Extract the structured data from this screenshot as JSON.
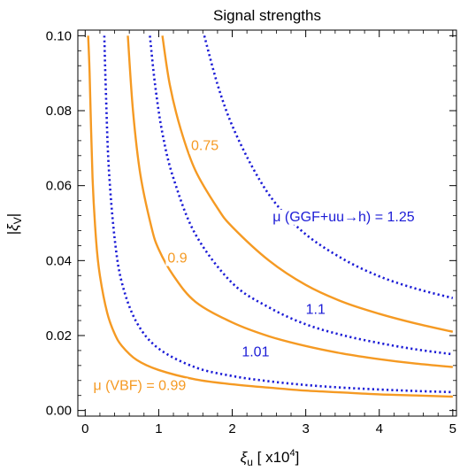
{
  "chart_data": {
    "type": "line",
    "title": "Signal strengths",
    "xlabel": "ξ_u [ x10^4]",
    "ylabel": "|ξ_V|",
    "xlim": [
      -0.1,
      5.05
    ],
    "ylim": [
      -0.0015,
      0.1015
    ],
    "xticks": [
      0,
      1,
      2,
      3,
      4,
      5
    ],
    "yticks": [
      0.0,
      0.02,
      0.04,
      0.06,
      0.08,
      0.1
    ],
    "ytick_labels": [
      "0.00",
      "0.02",
      "0.04",
      "0.06",
      "0.08",
      "0.10"
    ],
    "grid": false,
    "colors": {
      "vbf": "#f59a23",
      "ggf": "#1c1cd6"
    },
    "series": [
      {
        "group": "vbf",
        "style": "solid",
        "x": [
          0.04,
          0.06,
          0.1,
          0.15,
          0.2,
          0.3,
          0.4,
          0.5,
          0.7,
          1.0,
          1.5,
          2.0,
          2.5,
          3.0,
          3.5,
          4.0,
          4.5,
          5.0
        ],
        "y": [
          0.1,
          0.09,
          0.062,
          0.045,
          0.036,
          0.026,
          0.0205,
          0.0172,
          0.0135,
          0.0108,
          0.0083,
          0.007,
          0.0061,
          0.0053,
          0.0048,
          0.0043,
          0.004,
          0.0037
        ]
      },
      {
        "group": "vbf",
        "style": "solid",
        "x": [
          0.58,
          0.65,
          0.75,
          0.9,
          1.0,
          1.2,
          1.5,
          2.0,
          2.5,
          3.0,
          3.5,
          4.0,
          4.5,
          5.0
        ],
        "y": [
          0.1,
          0.08,
          0.063,
          0.049,
          0.043,
          0.036,
          0.029,
          0.0235,
          0.0198,
          0.0172,
          0.0152,
          0.0137,
          0.0125,
          0.0116
        ]
      },
      {
        "group": "vbf",
        "style": "solid",
        "x": [
          1.05,
          1.15,
          1.3,
          1.5,
          1.8,
          2.0,
          2.5,
          3.0,
          3.5,
          4.0,
          4.5,
          5.0
        ],
        "y": [
          0.1,
          0.087,
          0.075,
          0.064,
          0.054,
          0.049,
          0.04,
          0.0335,
          0.029,
          0.0258,
          0.0232,
          0.021
        ]
      },
      {
        "group": "ggf",
        "style": "dotted",
        "x": [
          0.26,
          0.28,
          0.32,
          0.4,
          0.5,
          0.7,
          1.0,
          1.5,
          2.0,
          2.5,
          3.0,
          3.5,
          4.0,
          4.5,
          5.0
        ],
        "y": [
          0.1,
          0.086,
          0.065,
          0.046,
          0.034,
          0.0235,
          0.0165,
          0.0115,
          0.0092,
          0.0078,
          0.0068,
          0.0061,
          0.0056,
          0.0052,
          0.0049
        ]
      },
      {
        "group": "ggf",
        "style": "dotted",
        "x": [
          0.88,
          0.95,
          1.05,
          1.2,
          1.5,
          2.0,
          2.5,
          3.0,
          3.5,
          4.0,
          4.5,
          5.0
        ],
        "y": [
          0.1,
          0.087,
          0.074,
          0.062,
          0.047,
          0.034,
          0.0275,
          0.023,
          0.0201,
          0.018,
          0.0163,
          0.015
        ]
      },
      {
        "group": "ggf",
        "style": "dotted",
        "x": [
          1.62,
          1.8,
          2.0,
          2.3,
          2.6,
          3.0,
          3.5,
          4.0,
          4.5,
          5.0
        ],
        "y": [
          0.1,
          0.087,
          0.076,
          0.064,
          0.055,
          0.047,
          0.0405,
          0.0358,
          0.0325,
          0.03
        ]
      }
    ],
    "annotations": [
      {
        "text": "μ (VBF) = 0.99",
        "group": "vbf",
        "x": 0.11,
        "y": 0.0055
      },
      {
        "text": "0.9",
        "group": "vbf",
        "x": 1.12,
        "y": 0.0395
      },
      {
        "text": "0.75",
        "group": "vbf",
        "x": 1.44,
        "y": 0.0695
      },
      {
        "text": "1.01",
        "group": "ggf",
        "x": 2.13,
        "y": 0.0145
      },
      {
        "text": "1.1",
        "group": "ggf",
        "x": 3.0,
        "y": 0.0258
      },
      {
        "text": "μ (GGF+uu→h) = 1.25",
        "group": "ggf",
        "x": 2.55,
        "y": 0.0505
      }
    ]
  }
}
